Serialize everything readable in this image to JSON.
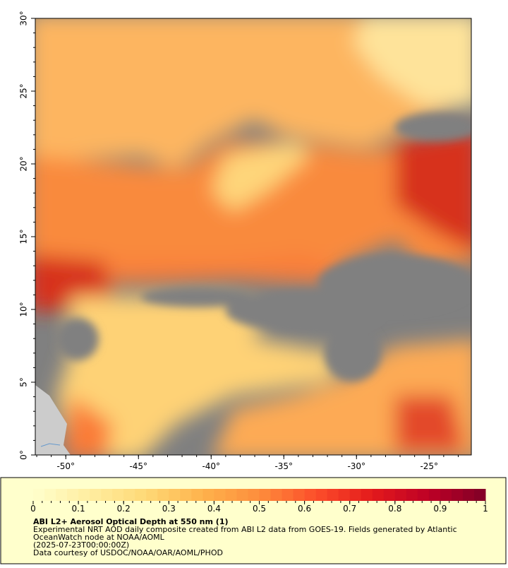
{
  "map": {
    "xlim": [
      -52.1,
      -22.1
    ],
    "ylim": [
      0,
      30
    ],
    "xticks": [
      {
        "value": -50,
        "label": "-50°"
      },
      {
        "value": -45,
        "label": "-45°"
      },
      {
        "value": -40,
        "label": "-40°"
      },
      {
        "value": -35,
        "label": "-35°"
      },
      {
        "value": -30,
        "label": "-30°"
      },
      {
        "value": -25,
        "label": "-25°"
      }
    ],
    "yticks": [
      {
        "value": 0,
        "label": "0°"
      },
      {
        "value": 5,
        "label": "5°"
      },
      {
        "value": 10,
        "label": "10°"
      },
      {
        "value": 15,
        "label": "15°"
      },
      {
        "value": 20,
        "label": "20°"
      },
      {
        "value": 25,
        "label": "25°"
      },
      {
        "value": 30,
        "label": "30°"
      }
    ]
  },
  "colorbar": {
    "range": [
      0,
      1
    ],
    "ticks": [
      0,
      0.1,
      0.2,
      0.3,
      0.4,
      0.5,
      0.6,
      0.7,
      0.8,
      0.9,
      1
    ],
    "colors": [
      "#ffffcc",
      "#ffeda0",
      "#fed976",
      "#feb24c",
      "#fd8d3c",
      "#fc4e2a",
      "#e31a1c",
      "#bd0026",
      "#800026"
    ]
  },
  "legend": {
    "title": "ABI L2+ Aerosol Optical Depth at 550 nm (1)",
    "lines": [
      "Experimental NRT AOD daily composite created from ABI L2 data from GOES-19. Fields generated by Atlantic",
      "OceanWatch node at NOAA/AOML",
      "(2025-07-23T00:00:00Z)",
      "Data courtesy of USDOC/NOAA/OAR/AOML/PHOD"
    ]
  }
}
